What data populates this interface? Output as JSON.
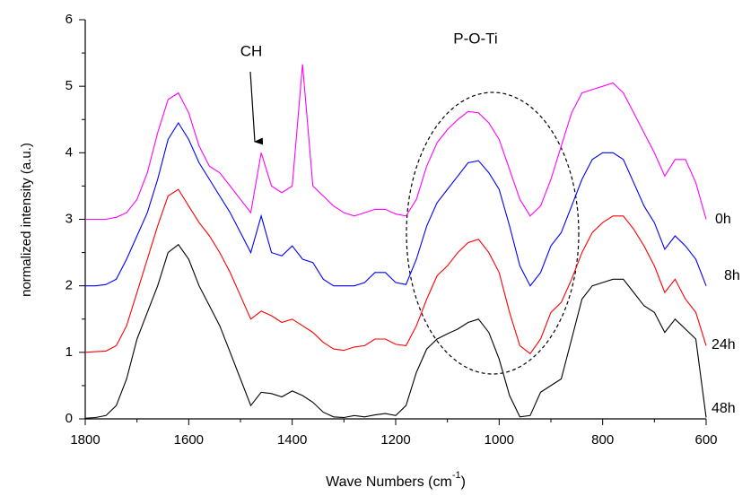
{
  "chart_data": {
    "type": "line",
    "xlabel": [
      "Wave Numbers (cm",
      "-1",
      ")"
    ],
    "ylabel": "normalized intensity (a.u.)",
    "annotations": [
      "CH",
      "P-O-Ti"
    ],
    "xlim": [
      1800,
      600
    ],
    "xticks": [
      1800,
      1600,
      1400,
      1200,
      1000,
      800,
      600
    ],
    "xticks_minor": [
      1700,
      1500,
      1300,
      1100,
      900,
      700
    ],
    "ylim": [
      0,
      6
    ],
    "yticks": [
      0,
      1,
      2,
      3,
      4,
      5,
      6
    ],
    "yticks_minor": [
      0.5,
      1.5,
      2.5,
      3.5,
      4.5,
      5.5
    ],
    "x": [
      1800,
      1780,
      1760,
      1740,
      1720,
      1700,
      1680,
      1660,
      1640,
      1620,
      1600,
      1580,
      1560,
      1540,
      1520,
      1500,
      1480,
      1460,
      1440,
      1420,
      1400,
      1380,
      1360,
      1340,
      1320,
      1300,
      1280,
      1260,
      1240,
      1220,
      1200,
      1180,
      1160,
      1140,
      1120,
      1100,
      1080,
      1060,
      1040,
      1020,
      1000,
      980,
      960,
      940,
      920,
      900,
      880,
      860,
      840,
      820,
      800,
      780,
      760,
      740,
      720,
      700,
      680,
      660,
      640,
      620,
      600
    ],
    "series": [
      {
        "name": "0h",
        "color": "#ff00ff",
        "values": [
          3.0,
          3.0,
          3.0,
          3.03,
          3.1,
          3.3,
          3.7,
          4.3,
          4.8,
          4.9,
          4.6,
          4.1,
          3.8,
          3.7,
          3.5,
          3.3,
          3.1,
          4.0,
          3.5,
          3.4,
          3.5,
          5.33,
          3.5,
          3.35,
          3.2,
          3.1,
          3.05,
          3.1,
          3.15,
          3.15,
          3.08,
          3.05,
          3.3,
          3.8,
          4.15,
          4.35,
          4.5,
          4.62,
          4.6,
          4.45,
          4.2,
          3.75,
          3.3,
          3.05,
          3.2,
          3.6,
          4.1,
          4.6,
          4.9,
          4.95,
          5.0,
          5.05,
          4.9,
          4.6,
          4.3,
          4.0,
          3.65,
          3.9,
          3.9,
          3.55,
          3.0
        ]
      },
      {
        "name": "8h",
        "color": "#0000ff",
        "values": [
          2.0,
          2.0,
          2.02,
          2.1,
          2.4,
          2.75,
          3.1,
          3.6,
          4.2,
          4.45,
          4.2,
          3.85,
          3.6,
          3.35,
          3.1,
          2.8,
          2.5,
          3.05,
          2.5,
          2.45,
          2.6,
          2.4,
          2.35,
          2.1,
          2.0,
          2.0,
          2.0,
          2.05,
          2.2,
          2.2,
          2.05,
          2.02,
          2.4,
          2.9,
          3.25,
          3.45,
          3.65,
          3.85,
          3.88,
          3.7,
          3.45,
          2.9,
          2.3,
          2.0,
          2.2,
          2.6,
          2.8,
          3.2,
          3.6,
          3.9,
          4.0,
          4.0,
          3.9,
          3.55,
          3.2,
          2.95,
          2.55,
          2.75,
          2.6,
          2.4,
          2.0
        ]
      },
      {
        "name": "24h",
        "color": "#ff0000",
        "values": [
          1.0,
          1.01,
          1.02,
          1.1,
          1.4,
          1.9,
          2.4,
          2.9,
          3.35,
          3.45,
          3.2,
          2.95,
          2.75,
          2.5,
          2.2,
          1.85,
          1.5,
          1.62,
          1.55,
          1.45,
          1.5,
          1.4,
          1.3,
          1.15,
          1.05,
          1.03,
          1.08,
          1.1,
          1.2,
          1.2,
          1.12,
          1.1,
          1.4,
          1.8,
          2.15,
          2.3,
          2.5,
          2.65,
          2.7,
          2.5,
          2.2,
          1.6,
          1.1,
          0.98,
          1.2,
          1.6,
          1.75,
          2.1,
          2.5,
          2.8,
          2.95,
          3.05,
          3.05,
          2.85,
          2.6,
          2.3,
          1.9,
          2.1,
          1.8,
          1.6,
          1.1
        ]
      },
      {
        "name": "48h",
        "color": "#000000",
        "values": [
          0.01,
          0.02,
          0.05,
          0.2,
          0.6,
          1.2,
          1.6,
          2.0,
          2.5,
          2.62,
          2.4,
          2.0,
          1.7,
          1.4,
          1.0,
          0.6,
          0.2,
          0.4,
          0.38,
          0.33,
          0.42,
          0.35,
          0.25,
          0.1,
          0.03,
          0.02,
          0.05,
          0.03,
          0.06,
          0.08,
          0.05,
          0.2,
          0.7,
          1.05,
          1.2,
          1.28,
          1.35,
          1.45,
          1.5,
          1.3,
          0.9,
          0.35,
          0.03,
          0.05,
          0.4,
          0.5,
          0.6,
          1.2,
          1.8,
          2.0,
          2.05,
          2.1,
          2.1,
          1.9,
          1.7,
          1.6,
          1.3,
          1.5,
          1.35,
          1.2,
          0.02
        ]
      }
    ]
  }
}
